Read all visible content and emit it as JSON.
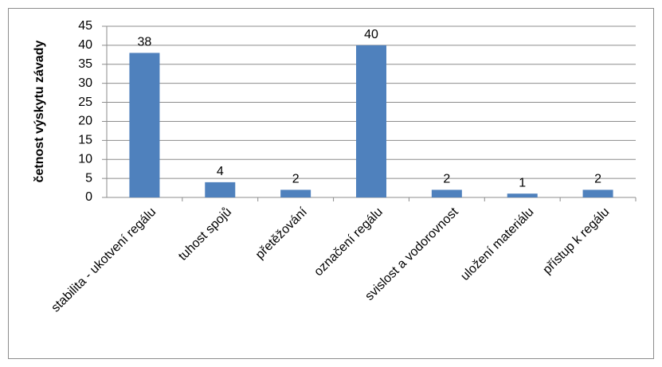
{
  "chart_data": {
    "type": "bar",
    "y_label": "četnost výskytu závady",
    "categories": [
      "stabilita - ukotvení regálu",
      "tuhost spojů",
      "přetěžování",
      "označení regálu",
      "svislost a vodorovnost",
      "uložení materiálu",
      "přístup k regálu"
    ],
    "values": [
      38,
      4,
      2,
      40,
      2,
      1,
      2
    ],
    "color": "#4f81bd",
    "ylim": [
      0,
      45
    ],
    "yticks": [
      0,
      5,
      10,
      15,
      20,
      25,
      30,
      35,
      40,
      45
    ],
    "grid": true,
    "data_labels": true
  }
}
